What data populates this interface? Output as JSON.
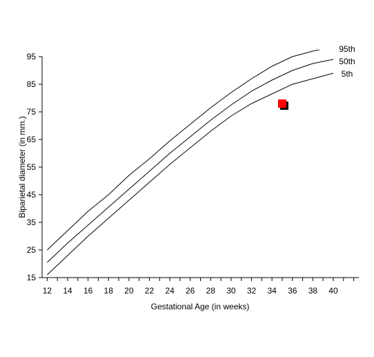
{
  "chart_data": {
    "type": "line",
    "title": "",
    "xlabel": "Gestational Age (in weeks)",
    "ylabel": "Biparietal diameter (in mm.)",
    "xlim": [
      11.5,
      42.5
    ],
    "ylim": [
      15,
      95
    ],
    "x_ticks": [
      12,
      14,
      16,
      18,
      20,
      22,
      24,
      26,
      28,
      30,
      32,
      34,
      36,
      38,
      40
    ],
    "y_ticks": [
      15,
      25,
      35,
      45,
      55,
      65,
      75,
      85,
      95
    ],
    "grid": false,
    "legend": "none",
    "series": [
      {
        "name": "95th",
        "color": "#000000",
        "x": [
          12,
          14,
          16,
          18,
          20,
          22,
          24,
          26,
          28,
          30,
          32,
          34,
          36,
          38,
          39
        ],
        "y": [
          25,
          32,
          39,
          45,
          52,
          58,
          64.5,
          70.5,
          76.5,
          82,
          87,
          91.5,
          95,
          97,
          97.8
        ]
      },
      {
        "name": "50th",
        "color": "#000000",
        "x": [
          12,
          14,
          16,
          18,
          20,
          22,
          24,
          26,
          28,
          30,
          32,
          34,
          36,
          38,
          40
        ],
        "y": [
          20.5,
          27.5,
          34,
          40.5,
          47,
          53.5,
          60,
          66,
          72,
          77.5,
          82.5,
          86.5,
          90,
          92.5,
          94
        ]
      },
      {
        "name": "5th",
        "color": "#000000",
        "x": [
          12,
          14,
          16,
          18,
          20,
          22,
          24,
          26,
          28,
          30,
          32,
          34,
          36,
          38,
          40
        ],
        "y": [
          16,
          23,
          30,
          36.5,
          43,
          49.5,
          56,
          62,
          68,
          73.5,
          78,
          81.5,
          85,
          87,
          89
        ]
      }
    ],
    "marker": {
      "x": 35,
      "y": 78,
      "color": "#ff0000",
      "shadow": "#000000"
    }
  }
}
